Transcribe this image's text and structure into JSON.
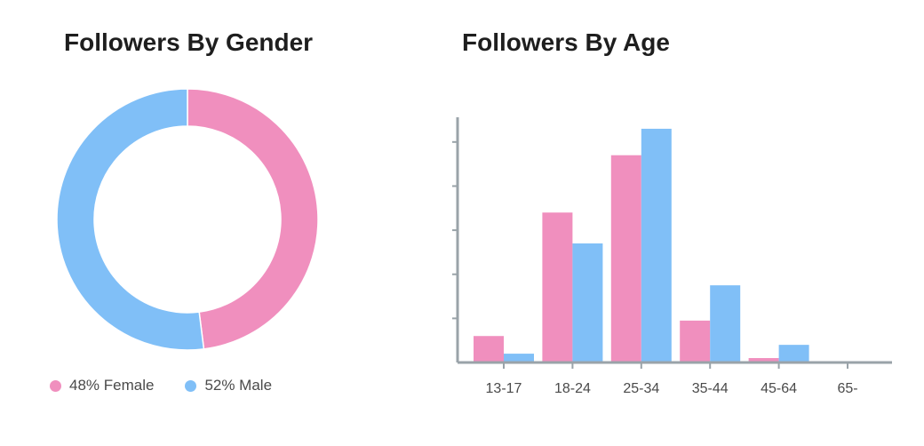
{
  "colors": {
    "female": "#f08fbe",
    "male": "#80bff7",
    "axis": "#9aa3a9"
  },
  "chart_data": [
    {
      "type": "pie",
      "title": "Followers By Gender",
      "slices": [
        {
          "label": "48% Female",
          "value": 48,
          "color": "#f08fbe"
        },
        {
          "label": "52% Male",
          "value": 52,
          "color": "#80bff7"
        }
      ],
      "donut": true,
      "legend": "bottom-left"
    },
    {
      "type": "bar",
      "title": "Followers By Age",
      "categories": [
        "13-17",
        "18-24",
        "25-34",
        "35-44",
        "45-64",
        "65-"
      ],
      "series": [
        {
          "key": "female",
          "values": [
            6,
            34,
            47,
            9.5,
            1,
            0
          ],
          "color": "#f08fbe"
        },
        {
          "key": "male",
          "values": [
            2,
            27,
            53,
            17.5,
            4,
            0
          ],
          "color": "#80bff7"
        }
      ],
      "xlabel": "",
      "ylabel": "",
      "ylim": [
        0,
        55
      ],
      "y_ticks_labeled": false,
      "grid": false
    }
  ]
}
